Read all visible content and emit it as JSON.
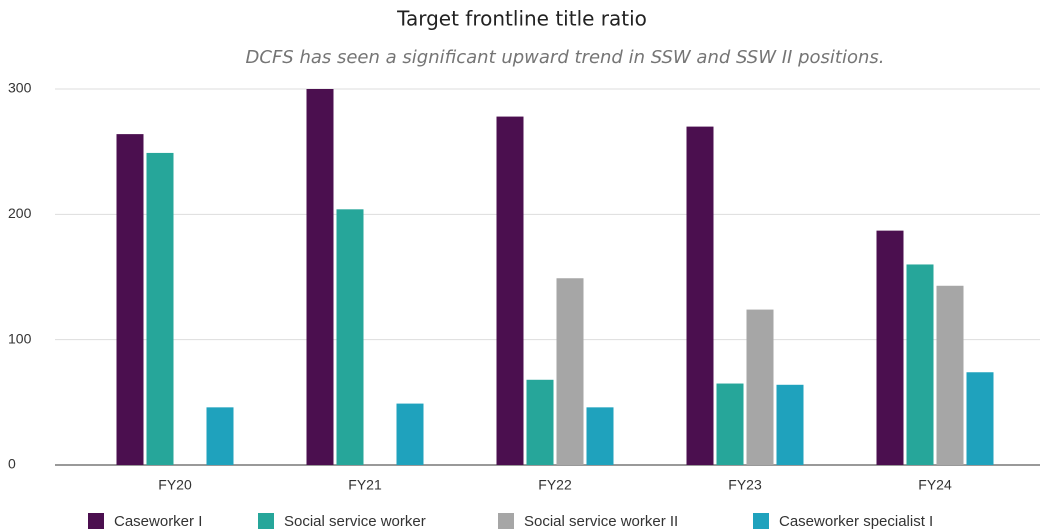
{
  "chart_data": {
    "type": "bar",
    "title": "Target frontline title ratio",
    "subtitle": "DCFS has seen a significant upward trend in SSW and SSW II positions.",
    "categories": [
      "FY20",
      "FY21",
      "FY22",
      "FY23",
      "FY24"
    ],
    "series": [
      {
        "name": "Caseworker I",
        "color": "#4b0f4f",
        "values": [
          264,
          300,
          278,
          270,
          187
        ]
      },
      {
        "name": "Social service worker",
        "color": "#26a69a",
        "values": [
          249,
          204,
          68,
          65,
          160
        ]
      },
      {
        "name": "Social service worker II",
        "color": "#a6a6a6",
        "values": [
          null,
          null,
          149,
          124,
          143
        ]
      },
      {
        "name": "Caseworker specialist I",
        "color": "#1fa2bd",
        "values": [
          46,
          49,
          46,
          64,
          74
        ]
      }
    ],
    "ylim": [
      0,
      300
    ],
    "yticks": [
      0,
      100,
      200,
      300
    ],
    "grid": true,
    "legend": "bottom"
  }
}
